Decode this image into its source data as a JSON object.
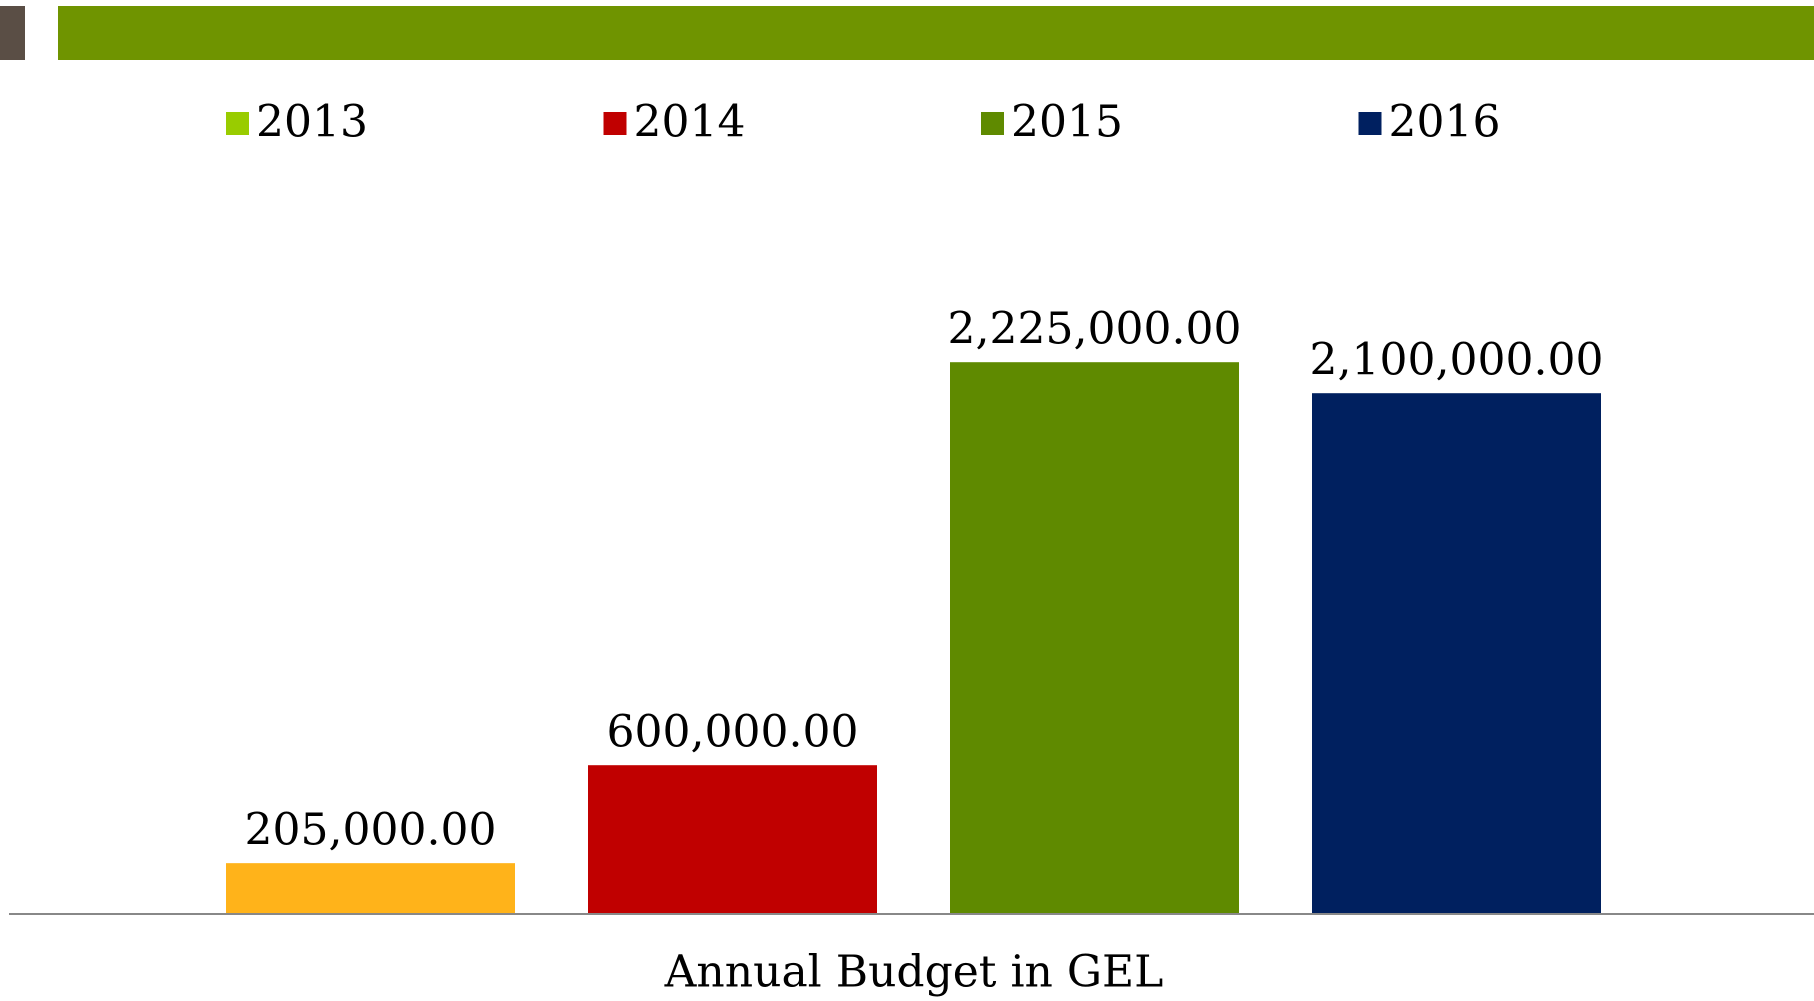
{
  "chart_data": {
    "type": "bar",
    "categories": [
      "Annual Budget in GEL"
    ],
    "series": [
      {
        "name": "2013",
        "color": "#99cc00",
        "bar_color": "#ffb31a",
        "values": [
          205000
        ],
        "value_labels": [
          "205,000.00"
        ]
      },
      {
        "name": "2014",
        "color": "#c00000",
        "bar_color": "#c00000",
        "values": [
          600000
        ],
        "value_labels": [
          "600,000.00"
        ]
      },
      {
        "name": "2015",
        "color": "#5f8a00",
        "bar_color": "#5f8a00",
        "values": [
          2225000
        ],
        "value_labels": [
          "2,225,000.00"
        ]
      },
      {
        "name": "2016",
        "color": "#002060",
        "bar_color": "#00205f",
        "values": [
          2100000
        ],
        "value_labels": [
          "2,100,000.00"
        ]
      }
    ],
    "ylim": [
      0,
      2500000
    ],
    "legend": "top"
  }
}
